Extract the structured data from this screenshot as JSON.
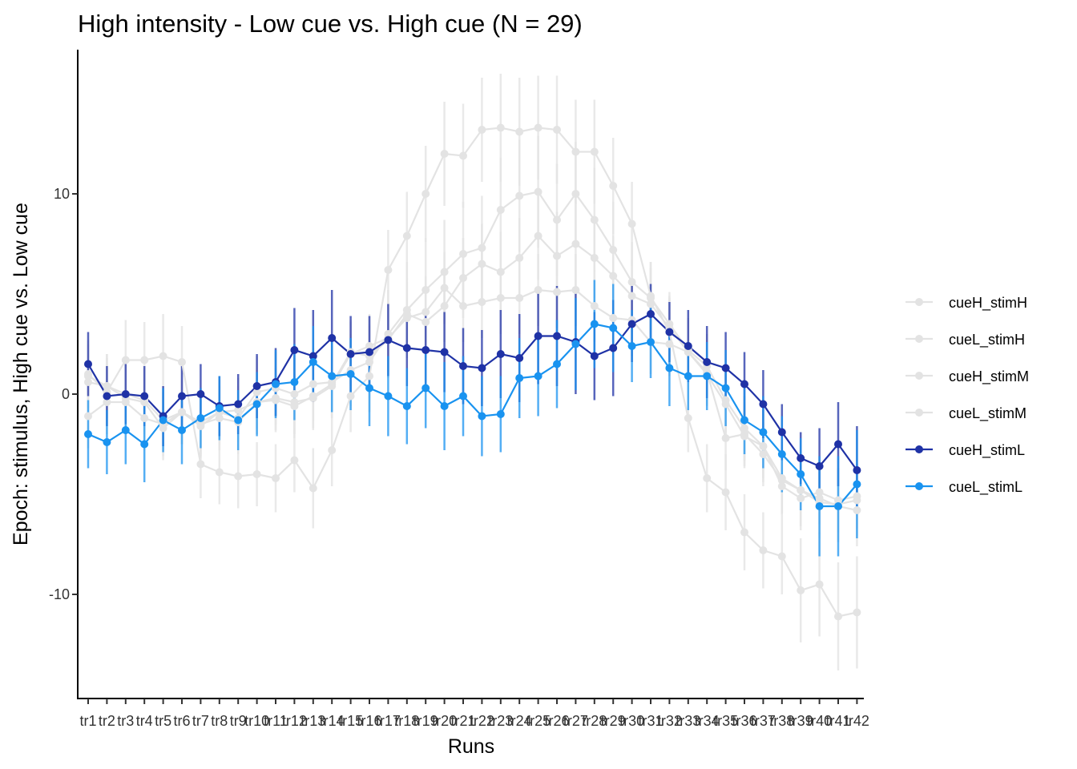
{
  "chart_data": {
    "type": "line",
    "title": "High intensity - Low cue vs. High cue (N = 29)",
    "xlabel": "Runs",
    "ylabel": "Epoch: stimulus, High cue vs. Low cue",
    "categories": [
      "tr1",
      "tr2",
      "tr3",
      "tr4",
      "tr5",
      "tr6",
      "tr7",
      "tr8",
      "tr9",
      "tr10",
      "tr11",
      "tr12",
      "tr13",
      "tr14",
      "tr15",
      "tr16",
      "tr17",
      "tr18",
      "tr19",
      "tr20",
      "tr21",
      "tr22",
      "tr23",
      "tr24",
      "tr25",
      "tr26",
      "tr27",
      "tr28",
      "tr29",
      "tr30",
      "tr31",
      "tr32",
      "tr33",
      "tr34",
      "tr35",
      "tr36",
      "tr37",
      "tr38",
      "tr39",
      "tr40",
      "tr41",
      "tr42"
    ],
    "ylim": [
      -15.2,
      17.2
    ],
    "yticks": [
      -10,
      0,
      10
    ],
    "ytick_labels": [
      "-10",
      "0",
      "10"
    ],
    "grid": false,
    "legend_position": "right",
    "series": [
      {
        "name": "cueH_stimH",
        "color": "#e3e3e3",
        "values": [
          0.9,
          0.4,
          0.0,
          -0.3,
          -1.3,
          -0.9,
          -1.4,
          -0.9,
          -1.2,
          0.1,
          0.3,
          0.0,
          0.5,
          0.6,
          1.2,
          1.6,
          3.0,
          4.2,
          5.2,
          6.1,
          7.0,
          7.3,
          9.2,
          9.9,
          10.1,
          8.7,
          10.0,
          8.7,
          7.2,
          5.6,
          4.8,
          3.5,
          2.2,
          1.4,
          -0.3,
          -1.7,
          -2.6,
          -4.2,
          -4.8,
          -5.4,
          -5.5,
          -5.3
        ],
        "errors": [
          1.6,
          1.6,
          1.6,
          1.6,
          1.6,
          1.6,
          1.6,
          1.6,
          1.6,
          1.8,
          1.8,
          1.8,
          1.8,
          1.8,
          1.8,
          1.8,
          2.2,
          2.4,
          2.6,
          2.6,
          2.6,
          2.6,
          2.6,
          2.8,
          2.8,
          2.8,
          2.6,
          2.6,
          2.4,
          2.0,
          1.8,
          1.6,
          1.6,
          1.6,
          1.6,
          1.6,
          1.8,
          1.8,
          1.8,
          1.8,
          1.8,
          1.8
        ]
      },
      {
        "name": "cueL_stimH",
        "color": "#e3e3e3",
        "values": [
          0.6,
          0.4,
          -0.2,
          -0.4,
          -1.7,
          -0.9,
          -1.5,
          -1.2,
          -1.4,
          -0.4,
          -0.2,
          -0.4,
          -0.2,
          0.4,
          2.0,
          2.4,
          2.8,
          3.8,
          4.1,
          5.3,
          4.4,
          4.6,
          4.8,
          4.8,
          5.2,
          5.1,
          5.2,
          4.4,
          3.8,
          3.7,
          2.6,
          2.5,
          2.1,
          1.0,
          -0.5,
          -2.1,
          -2.6,
          -4.6,
          -5.2,
          -4.9,
          -5.3,
          -5.1
        ],
        "errors": [
          1.6,
          1.6,
          1.6,
          1.6,
          1.6,
          1.6,
          1.6,
          1.6,
          1.6,
          1.6,
          1.6,
          1.6,
          1.6,
          1.6,
          1.6,
          1.6,
          1.8,
          1.8,
          1.8,
          1.8,
          1.8,
          1.8,
          1.8,
          1.8,
          1.8,
          1.8,
          1.8,
          1.8,
          1.8,
          1.8,
          1.6,
          1.6,
          1.6,
          1.6,
          1.6,
          1.6,
          1.6,
          1.6,
          1.6,
          1.6,
          1.6,
          1.6
        ]
      },
      {
        "name": "cueH_stimM",
        "color": "#e3e3e3",
        "values": [
          -1.1,
          -0.4,
          -0.4,
          -1.2,
          -1.5,
          -0.9,
          -1.6,
          -0.9,
          -0.8,
          -0.4,
          -0.3,
          -0.6,
          -0.1,
          0.5,
          2.1,
          1.9,
          2.7,
          4.0,
          3.6,
          4.4,
          5.8,
          6.5,
          6.1,
          6.8,
          7.9,
          6.9,
          7.5,
          6.8,
          5.9,
          4.9,
          4.5,
          3.3,
          2.1,
          1.1,
          -2.2,
          -2.0,
          -3.0,
          -4.3,
          -4.8,
          -5.2,
          -5.6,
          -5.8
        ],
        "errors": [
          1.6,
          1.6,
          1.6,
          1.6,
          1.6,
          1.6,
          1.6,
          1.6,
          1.6,
          1.6,
          1.6,
          1.6,
          1.6,
          1.6,
          1.6,
          1.6,
          1.6,
          1.8,
          1.8,
          1.8,
          2.0,
          2.0,
          2.0,
          2.0,
          2.2,
          2.2,
          2.2,
          2.0,
          2.0,
          1.8,
          1.8,
          1.6,
          1.6,
          1.6,
          1.6,
          1.6,
          1.6,
          1.6,
          1.8,
          1.8,
          1.8,
          1.8
        ]
      },
      {
        "name": "cueL_stimM",
        "color": "#e3e3e3",
        "values": [
          1.0,
          0.1,
          1.7,
          1.7,
          1.9,
          1.6,
          -3.5,
          -3.9,
          -4.1,
          -4.0,
          -4.2,
          -3.3,
          -4.7,
          -2.8,
          -0.1,
          0.9,
          6.2,
          7.9,
          10.0,
          12.0,
          11.9,
          13.2,
          13.3,
          13.1,
          13.3,
          13.2,
          12.1,
          12.1,
          10.4,
          8.5,
          4.9,
          3.1,
          -1.2,
          -4.2,
          -4.9,
          -6.9,
          -7.8,
          -8.1,
          -9.8,
          -9.5,
          -11.1,
          -10.9
        ],
        "errors": [
          1.7,
          1.7,
          2.0,
          1.9,
          2.1,
          1.8,
          1.7,
          1.6,
          1.6,
          1.6,
          1.7,
          1.6,
          2.0,
          1.8,
          1.8,
          1.8,
          2.0,
          2.2,
          2.4,
          2.6,
          2.6,
          2.6,
          2.7,
          2.7,
          2.6,
          2.7,
          2.6,
          2.6,
          2.4,
          2.1,
          1.7,
          1.7,
          1.7,
          1.7,
          1.9,
          1.9,
          1.9,
          1.9,
          2.6,
          2.6,
          2.7,
          2.8
        ]
      },
      {
        "name": "cueH_stimL",
        "color": "#1f32a6",
        "values": [
          1.5,
          -0.1,
          0.0,
          -0.1,
          -1.1,
          -0.1,
          0.0,
          -0.6,
          -0.5,
          0.4,
          0.6,
          2.2,
          1.9,
          2.8,
          2.0,
          2.1,
          2.7,
          2.3,
          2.2,
          2.1,
          1.4,
          1.3,
          2.0,
          1.8,
          2.9,
          2.9,
          2.6,
          1.9,
          2.3,
          3.5,
          4.0,
          3.1,
          2.4,
          1.6,
          1.3,
          0.5,
          -0.5,
          -1.9,
          -3.2,
          -3.6,
          -2.5,
          -3.8
        ],
        "errors": [
          1.6,
          1.5,
          1.5,
          1.5,
          1.5,
          1.5,
          1.5,
          1.5,
          1.5,
          1.6,
          1.7,
          2.1,
          2.3,
          2.4,
          1.9,
          1.8,
          1.8,
          1.9,
          1.9,
          2.0,
          1.9,
          1.9,
          2.2,
          2.2,
          2.4,
          2.5,
          2.6,
          2.2,
          2.4,
          1.9,
          1.5,
          1.5,
          1.8,
          1.8,
          1.8,
          1.6,
          1.7,
          1.4,
          1.3,
          1.9,
          2.1,
          2.2
        ]
      },
      {
        "name": "cueL_stimL",
        "color": "#1993f0",
        "values": [
          -2.0,
          -2.4,
          -1.8,
          -2.5,
          -1.3,
          -1.8,
          -1.2,
          -0.7,
          -1.3,
          -0.5,
          0.5,
          0.6,
          1.6,
          0.9,
          1.0,
          0.3,
          -0.1,
          -0.6,
          0.3,
          -0.6,
          -0.1,
          -1.1,
          -1.0,
          0.8,
          0.9,
          1.5,
          2.5,
          3.5,
          3.3,
          2.4,
          2.6,
          1.3,
          0.9,
          0.9,
          0.3,
          -1.3,
          -1.9,
          -3.0,
          -4.0,
          -5.6,
          -5.6,
          -4.5
        ],
        "errors": [
          1.7,
          1.6,
          1.7,
          1.9,
          1.6,
          1.7,
          1.5,
          1.6,
          1.5,
          1.6,
          1.7,
          1.9,
          1.8,
          1.8,
          1.8,
          1.9,
          2.0,
          1.9,
          2.0,
          2.2,
          2.0,
          2.0,
          1.9,
          2.0,
          2.0,
          2.2,
          2.3,
          2.2,
          2.2,
          1.8,
          1.8,
          1.9,
          1.7,
          1.7,
          1.9,
          1.7,
          1.8,
          1.9,
          1.8,
          2.5,
          2.5,
          2.7
        ]
      }
    ]
  }
}
